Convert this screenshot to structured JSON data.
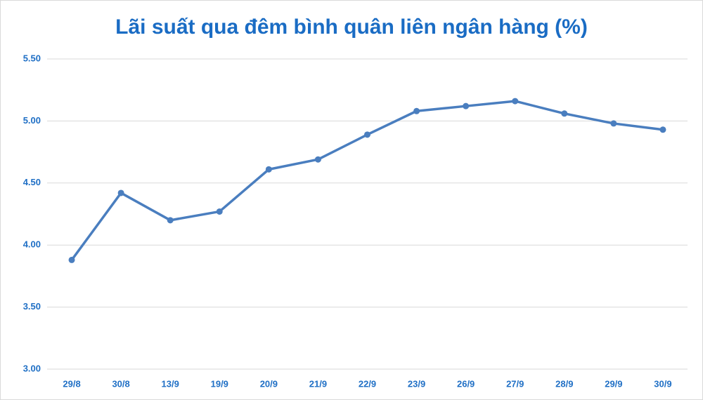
{
  "chart_data": {
    "type": "line",
    "title": "Lãi suất qua đêm bình quân liên ngân hàng (%)",
    "categories": [
      "29/8",
      "30/8",
      "13/9",
      "19/9",
      "20/9",
      "21/9",
      "22/9",
      "23/9",
      "26/9",
      "27/9",
      "28/9",
      "29/9",
      "30/9"
    ],
    "values": [
      3.88,
      4.42,
      4.2,
      4.27,
      4.61,
      4.69,
      4.89,
      5.08,
      5.12,
      5.16,
      5.06,
      4.98,
      4.93
    ],
    "color": "#4a7ebf",
    "ylim": [
      3,
      5.5
    ],
    "yticks": [
      {
        "value": 3,
        "label": "3.00"
      },
      {
        "value": 3.5,
        "label": "3.50"
      },
      {
        "value": 4,
        "label": "4.00"
      },
      {
        "value": 4.5,
        "label": "4.50"
      },
      {
        "value": 5,
        "label": "5.00"
      },
      {
        "value": 5.5,
        "label": "5.50"
      }
    ],
    "grid": true
  }
}
